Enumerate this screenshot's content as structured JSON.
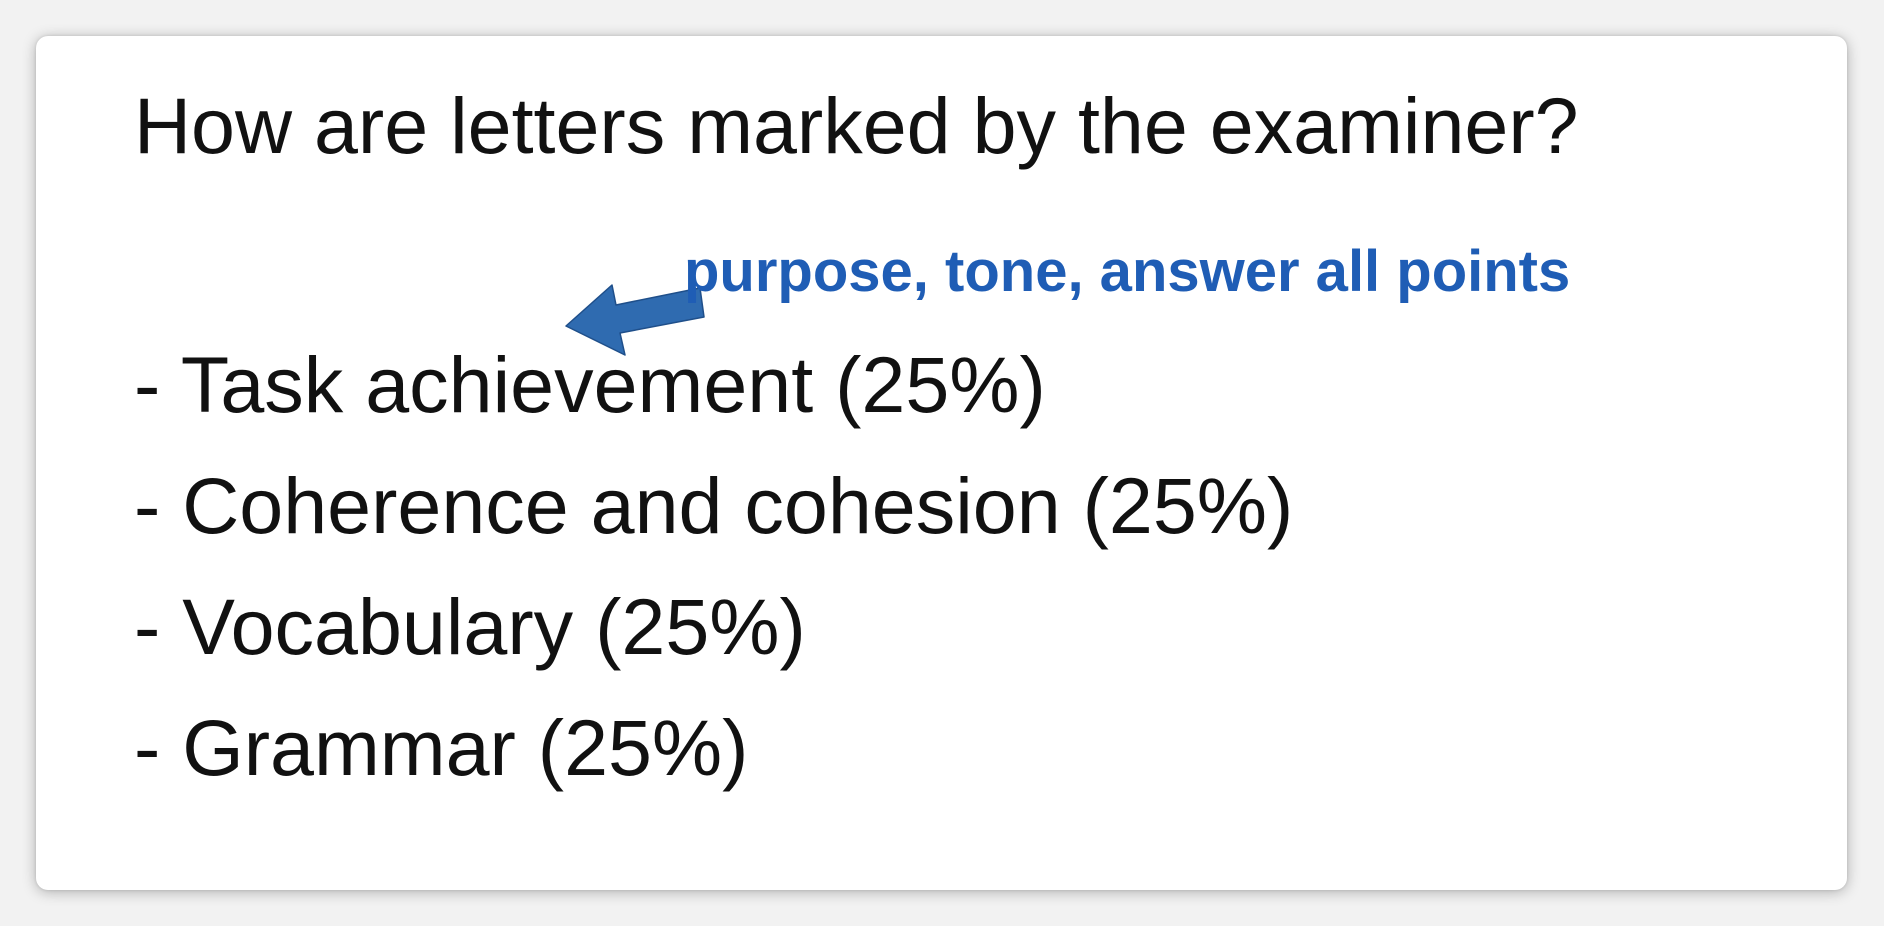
{
  "slide": {
    "title": "How are letters marked by the examiner?",
    "annotation": "purpose, tone, answer all points",
    "annotation_color": "#1f5db5",
    "arrow_icon": "left-arrow-icon",
    "criteria": [
      "- Task achievement (25%)",
      "- Coherence and cohesion (25%)",
      "- Vocabulary (25%)",
      "- Grammar (25%)"
    ]
  }
}
